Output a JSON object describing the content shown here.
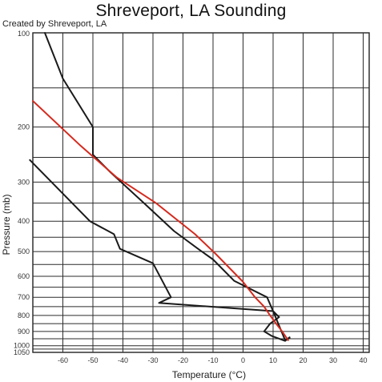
{
  "title": "Shreveport, LA  Sounding",
  "credit": "Created by Shreveport, LA",
  "chart_data": {
    "type": "line",
    "title": "Shreveport, LA  Sounding",
    "xlabel": "Temperature (°C)",
    "ylabel": "Pressure (mb)",
    "xlim": [
      -70,
      42
    ],
    "ylim": [
      1050,
      100
    ],
    "x_ticks": [
      -60,
      -50,
      -40,
      -30,
      -20,
      -10,
      0,
      10,
      20,
      30,
      40
    ],
    "y_ticks": [
      100,
      200,
      300,
      400,
      500,
      600,
      700,
      800,
      900,
      1000,
      1050
    ],
    "grid": true,
    "series": [
      {
        "color": "#1a1a1a",
        "points": [
          [
            15.5,
            940
          ],
          [
            14,
            965
          ],
          [
            9.5,
            930
          ],
          [
            7,
            900
          ],
          [
            9,
            850
          ],
          [
            12,
            810
          ],
          [
            10,
            775
          ],
          [
            8,
            700
          ],
          [
            -3,
            620
          ],
          [
            -10,
            530
          ],
          [
            -15,
            490
          ],
          [
            -23,
            430
          ],
          [
            -33,
            350
          ],
          [
            -44,
            280
          ],
          [
            -50,
            245
          ],
          [
            -50,
            200
          ],
          [
            -60,
            140
          ],
          [
            -66,
            100
          ]
        ]
      },
      {
        "color": "#1a1a1a",
        "points": [
          [
            15.5,
            945
          ],
          [
            14,
            960
          ],
          [
            10,
            775
          ],
          [
            -28,
            730
          ],
          [
            -24,
            700
          ],
          [
            -30,
            545
          ],
          [
            -41,
            490
          ],
          [
            -43,
            440
          ],
          [
            -51,
            400
          ],
          [
            -71,
            255
          ]
        ]
      },
      {
        "color": "#d42a1e",
        "points": [
          [
            15,
            960
          ],
          [
            13,
            900
          ],
          [
            11,
            850
          ],
          [
            9,
            800
          ],
          [
            7,
            750
          ],
          [
            4,
            700
          ],
          [
            0,
            625
          ],
          [
            -9,
            510
          ],
          [
            -16,
            440
          ],
          [
            -29,
            350
          ],
          [
            -42,
            290
          ],
          [
            -54,
            230
          ],
          [
            -70,
            165
          ]
        ]
      }
    ]
  }
}
